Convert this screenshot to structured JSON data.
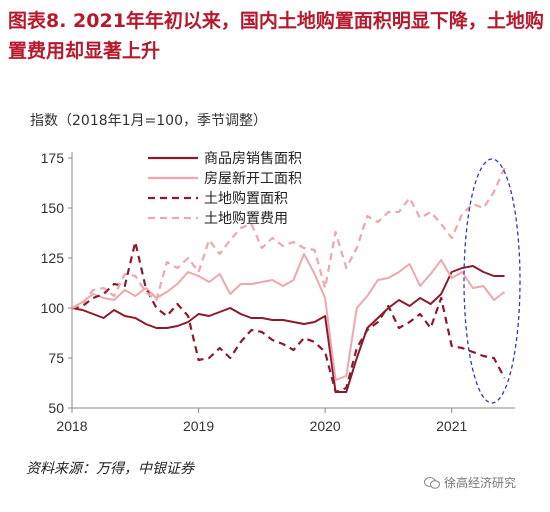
{
  "title": "图表8. 2021年年初以来，国内土地购置面积明显下降，土地购置费用却显著上升",
  "source": "资料来源：万得，中银证券",
  "watermark": "徐高经济研究",
  "chart_data": {
    "type": "line",
    "title": "图表8. 2021年年初以来，国内土地购置面积明显下降，土地购置费用却显著上升",
    "ylabel": "指数（2018年1月=100，季节调整）",
    "xlabel": "",
    "ylim": [
      50,
      175
    ],
    "yticks": [
      50,
      75,
      100,
      125,
      150,
      175
    ],
    "xlim": [
      2018.0,
      2021.5
    ],
    "xticks": [
      "2018",
      "2019",
      "2020",
      "2021"
    ],
    "grid": false,
    "legend_position": "top-center",
    "annotation": "dashed blue ellipse highlighting 2021",
    "series": [
      {
        "name": "商品房销售面积",
        "color": "#8b1a2b",
        "style": "solid",
        "x": [
          2018.0,
          2018.083,
          2018.167,
          2018.25,
          2018.333,
          2018.417,
          2018.5,
          2018.583,
          2018.667,
          2018.75,
          2018.833,
          2018.917,
          2019.0,
          2019.083,
          2019.167,
          2019.25,
          2019.333,
          2019.417,
          2019.5,
          2019.583,
          2019.667,
          2019.75,
          2019.833,
          2019.917,
          2020.0,
          2020.083,
          2020.167,
          2020.25,
          2020.333,
          2020.417,
          2020.5,
          2020.583,
          2020.667,
          2020.75,
          2020.833,
          2020.917,
          2021.0,
          2021.083,
          2021.167,
          2021.25,
          2021.333,
          2021.417
        ],
        "y": [
          100,
          99,
          97,
          95,
          99,
          96,
          95,
          92,
          90,
          90,
          91,
          93,
          97,
          96,
          98,
          100,
          97,
          95,
          95,
          94,
          94,
          93,
          92,
          93,
          96,
          58,
          58,
          75,
          90,
          95,
          100,
          104,
          101,
          105,
          102,
          107,
          118,
          120,
          121,
          118,
          116,
          116
        ]
      },
      {
        "name": "房屋新开工面积",
        "color": "#eda7ad",
        "style": "solid",
        "x": [
          2018.0,
          2018.083,
          2018.167,
          2018.25,
          2018.333,
          2018.417,
          2018.5,
          2018.583,
          2018.667,
          2018.75,
          2018.833,
          2018.917,
          2019.0,
          2019.083,
          2019.167,
          2019.25,
          2019.333,
          2019.417,
          2019.5,
          2019.583,
          2019.667,
          2019.75,
          2019.833,
          2019.917,
          2020.0,
          2020.083,
          2020.167,
          2020.25,
          2020.333,
          2020.417,
          2020.5,
          2020.583,
          2020.667,
          2020.75,
          2020.833,
          2020.917,
          2021.0,
          2021.083,
          2021.167,
          2021.25,
          2021.333,
          2021.417
        ],
        "y": [
          100,
          103,
          107,
          105,
          104,
          109,
          106,
          110,
          105,
          108,
          112,
          118,
          116,
          113,
          117,
          107,
          112,
          112,
          113,
          114,
          111,
          114,
          127,
          117,
          105,
          64,
          66,
          100,
          106,
          114,
          115,
          118,
          122,
          111,
          117,
          124,
          115,
          118,
          110,
          111,
          104,
          108
        ]
      },
      {
        "name": "土地购置面积",
        "color": "#8b1a2b",
        "style": "dashed",
        "x": [
          2018.0,
          2018.083,
          2018.167,
          2018.25,
          2018.333,
          2018.417,
          2018.5,
          2018.583,
          2018.667,
          2018.75,
          2018.833,
          2018.917,
          2019.0,
          2019.083,
          2019.167,
          2019.25,
          2019.333,
          2019.417,
          2019.5,
          2019.583,
          2019.667,
          2019.75,
          2019.833,
          2019.917,
          2020.0,
          2020.083,
          2020.167,
          2020.25,
          2020.333,
          2020.417,
          2020.5,
          2020.583,
          2020.667,
          2020.75,
          2020.833,
          2020.917,
          2021.0,
          2021.083,
          2021.167,
          2021.25,
          2021.333,
          2021.417
        ],
        "y": [
          100,
          101,
          105,
          107,
          112,
          111,
          133,
          110,
          100,
          96,
          102,
          96,
          74,
          75,
          80,
          75,
          83,
          89,
          88,
          84,
          82,
          79,
          85,
          83,
          78,
          58,
          60,
          80,
          89,
          93,
          101,
          90,
          93,
          97,
          90,
          105,
          81,
          80,
          78,
          76,
          75,
          65
        ]
      },
      {
        "name": "土地购置费用",
        "color": "#eda7ad",
        "style": "dashed",
        "x": [
          2018.0,
          2018.083,
          2018.167,
          2018.25,
          2018.333,
          2018.417,
          2018.5,
          2018.583,
          2018.667,
          2018.75,
          2018.833,
          2018.917,
          2019.0,
          2019.083,
          2019.167,
          2019.25,
          2019.333,
          2019.417,
          2019.5,
          2019.583,
          2019.667,
          2019.75,
          2019.833,
          2019.917,
          2020.0,
          2020.083,
          2020.167,
          2020.25,
          2020.333,
          2020.417,
          2020.5,
          2020.583,
          2020.667,
          2020.75,
          2020.833,
          2020.917,
          2021.0,
          2021.083,
          2021.167,
          2021.25,
          2021.333,
          2021.417
        ],
        "y": [
          100,
          102,
          109,
          110,
          106,
          117,
          116,
          108,
          104,
          123,
          120,
          125,
          118,
          134,
          127,
          134,
          140,
          142,
          130,
          135,
          131,
          133,
          130,
          129,
          110,
          138,
          120,
          130,
          146,
          143,
          148,
          148,
          155,
          145,
          148,
          142,
          135,
          147,
          152,
          150,
          158,
          170
        ]
      }
    ]
  }
}
